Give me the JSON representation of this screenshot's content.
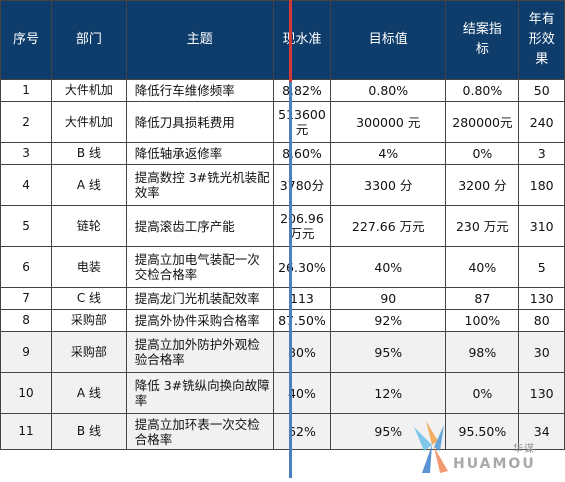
{
  "headers": [
    "序号",
    "部门",
    "主题",
    "现水准",
    "目标值",
    "结案指标",
    "年有形效果"
  ],
  "rows": [
    {
      "no": "1",
      "dept": "大件机加",
      "topic": "降低行车维修频率",
      "current": "8.82%",
      "target": "0.80%",
      "closing": "0.80%",
      "effect": "50"
    },
    {
      "no": "2",
      "dept": "大件机加",
      "topic": "降低刀具损耗费用",
      "current": "513600元",
      "target": "300000 元",
      "closing": "280000元",
      "effect": "240"
    },
    {
      "no": "3",
      "dept": "B 线",
      "topic": "降低轴承返修率",
      "current": "8.60%",
      "target": "4%",
      "closing": "0%",
      "effect": "3"
    },
    {
      "no": "4",
      "dept": "A 线",
      "topic": "提高数控 3#铣光机装配效率",
      "current": "3780分",
      "target": "3300 分",
      "closing": "3200 分",
      "effect": "180"
    },
    {
      "no": "5",
      "dept": "链轮",
      "topic": "提高滚齿工序产能",
      "current": "206.96万元",
      "target": "227.66 万元",
      "closing": "230 万元",
      "effect": "310"
    },
    {
      "no": "6",
      "dept": "电装",
      "topic": "提高立加电气装配一次交检合格率",
      "current": "26.30%",
      "target": "40%",
      "closing": "40%",
      "effect": "5"
    },
    {
      "no": "7",
      "dept": "C 线",
      "topic": "提高龙门光机装配效率",
      "current": "113",
      "target": "90",
      "closing": "87",
      "effect": "130"
    },
    {
      "no": "8",
      "dept": "采购部",
      "topic": "提高外协件采购合格率",
      "current": "87.50%",
      "target": "92%",
      "closing": "100%",
      "effect": "80"
    },
    {
      "no": "9",
      "dept": "采购部",
      "topic": "提高立加外防护外观检验合格率",
      "current": "80%",
      "target": "95%",
      "closing": "98%",
      "effect": "30"
    },
    {
      "no": "10",
      "dept": "A 线",
      "topic": "降低 3#铣纵向换向故障率",
      "current": "40%",
      "target": "12%",
      "closing": "0%",
      "effect": "130"
    },
    {
      "no": "11",
      "dept": "B 线",
      "topic": "提高立加环表一次交检合格率",
      "current": "62%",
      "target": "95%",
      "closing": "95.50%",
      "effect": "34"
    }
  ],
  "logo": {
    "cn": "华谋",
    "en": "HUAMOU"
  },
  "colors": {
    "header_bg": "#0e3d6b",
    "header_text": "#ffffff",
    "red_divider": "#d23a3a",
    "blue_divider": "#4a7fc0"
  }
}
